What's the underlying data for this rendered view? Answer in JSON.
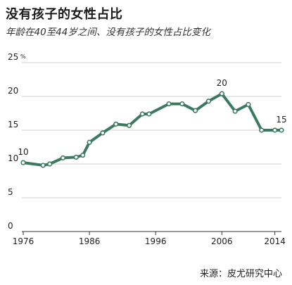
{
  "title": "没有孩子的女性占比",
  "subtitle": "年龄在40至44岁之间、没有孩子的女性占比变化",
  "source": "来源：皮尤研究中心",
  "chart_data": {
    "type": "line",
    "ylim": [
      0,
      25
    ],
    "xlim": [
      1976,
      2015
    ],
    "y_ticks": [
      "25",
      "20",
      "15",
      "10",
      "5",
      "0"
    ],
    "y_unit": "%",
    "x_ticks": [
      "1976",
      "1986",
      "1996",
      "2006",
      "2014"
    ],
    "grid": true,
    "line_color": "#3c7a5f",
    "series": [
      {
        "x": [
          1976,
          1979,
          1980,
          1982,
          1984,
          1985,
          1986,
          1988,
          1990,
          1992,
          1994,
          1995,
          1998,
          2000,
          2002,
          2004,
          2006,
          2008,
          2010,
          2012,
          2014,
          2015
        ],
        "values": [
          10.2,
          9.8,
          10.0,
          10.9,
          11.0,
          11.3,
          13.2,
          14.6,
          15.9,
          15.7,
          17.4,
          17.4,
          18.9,
          18.9,
          17.9,
          19.3,
          20.4,
          17.8,
          18.8,
          15.0,
          15.0,
          15.0
        ]
      }
    ],
    "annotations": [
      {
        "text": "10",
        "x": 1976,
        "y": 10.2
      },
      {
        "text": "20",
        "x": 2006,
        "y": 20.4
      },
      {
        "text": "15",
        "x": 2015,
        "y": 15.0
      }
    ]
  }
}
